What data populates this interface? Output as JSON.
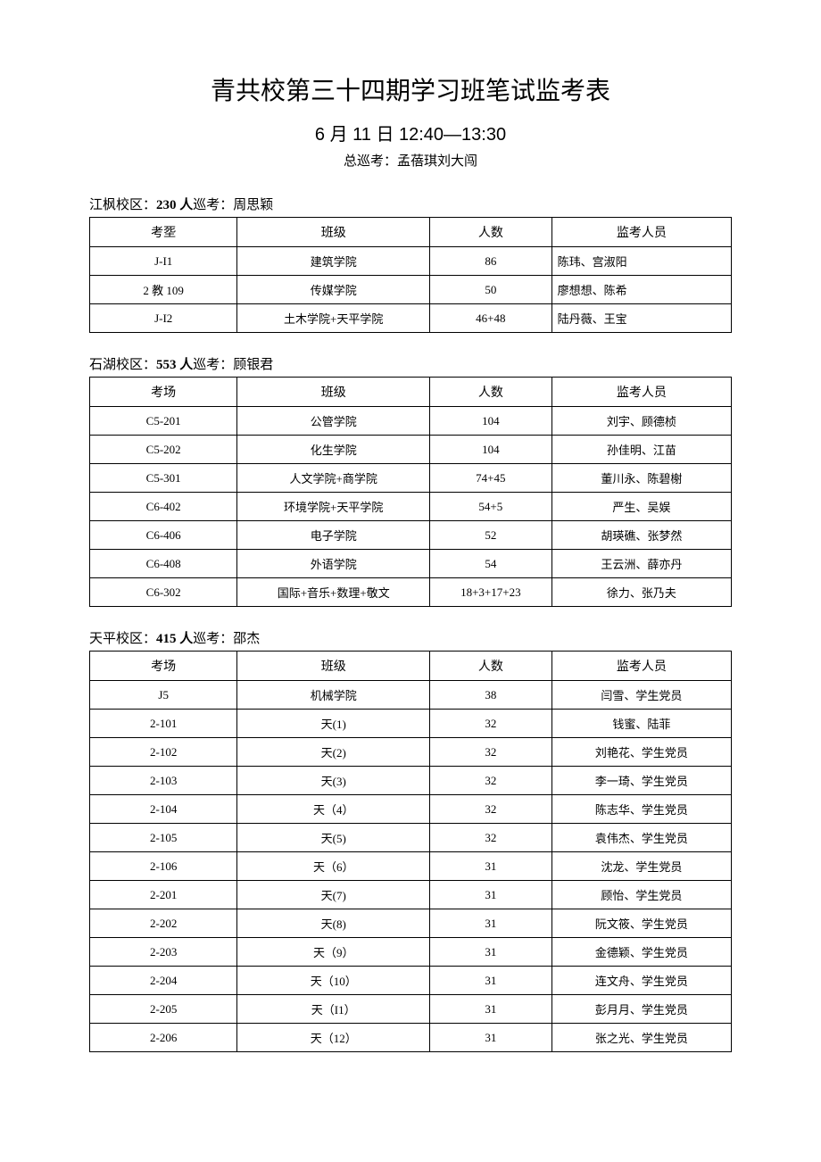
{
  "title": "青共校第三十四期学习班笔试监考表",
  "subtitle": "6 月 11 日 12:40—13:30",
  "supervisor_line": "总巡考：孟蓓琪刘大闯",
  "headers": {
    "room": "考场",
    "room_alt": "考㘸",
    "klass": "班级",
    "count": "人数",
    "staff": "监考人员"
  },
  "sections": [
    {
      "id": "jiangfeng",
      "label_prefix": "江枫校区：",
      "label_bold": "230 人",
      "label_rest": "巡考：周思颖",
      "use_alt_room_header": true,
      "staff_left_align": true,
      "rows": [
        {
          "room": "J-I1",
          "klass": "建筑学院",
          "count": "86",
          "staff": "陈玮、宫淑阳"
        },
        {
          "room": "2 教 109",
          "klass": "传媒学院",
          "count": "50",
          "staff": "廖想想、陈希"
        },
        {
          "room": "J-I2",
          "klass": "土木学院+天平学院",
          "count": "46+48",
          "staff": "陆丹薇、王宝"
        }
      ]
    },
    {
      "id": "shihu",
      "label_prefix": "石湖校区：",
      "label_bold": "553 人",
      "label_rest": "巡考：顾银君",
      "use_alt_room_header": false,
      "staff_left_align": false,
      "rows": [
        {
          "room": "C5-201",
          "klass": "公管学院",
          "count": "104",
          "staff": "刘宇、顾德桢"
        },
        {
          "room": "C5-202",
          "klass": "化生学院",
          "count": "104",
          "staff": "孙佳明、江苗"
        },
        {
          "room": "C5-301",
          "klass": "人文学院+商学院",
          "count": "74+45",
          "staff": "董川永、陈碧榭"
        },
        {
          "room": "C6-402",
          "klass": "环境学院+天平学院",
          "count": "54+5",
          "staff": "严生、吴娱"
        },
        {
          "room": "C6-406",
          "klass": "电子学院",
          "count": "52",
          "staff": "胡瑛礁、张梦然"
        },
        {
          "room": "C6-408",
          "klass": "外语学院",
          "count": "54",
          "staff": "王云洲、薛亦丹"
        },
        {
          "room": "C6-302",
          "klass": "国际+音乐+数理+敬文",
          "count": "18+3+17+23",
          "staff": "徐力、张乃夫"
        }
      ]
    },
    {
      "id": "tianping",
      "label_prefix": "天平校区：",
      "label_bold": "415 人",
      "label_rest": "巡考：邵杰",
      "use_alt_room_header": false,
      "staff_left_align": false,
      "rows": [
        {
          "room": "J5",
          "klass": "机械学院",
          "count": "38",
          "staff": "闫雪、学生党员"
        },
        {
          "room": "2-101",
          "klass": "天(1)",
          "count": "32",
          "staff": "钱蜜、陆菲"
        },
        {
          "room": "2-102",
          "klass": "天(2)",
          "count": "32",
          "staff": "刘艳花、学生党员"
        },
        {
          "room": "2-103",
          "klass": "天(3)",
          "count": "32",
          "staff": "李一琦、学生党员"
        },
        {
          "room": "2-104",
          "klass": "天（4）",
          "count": "32",
          "staff": "陈志华、学生党员"
        },
        {
          "room": "2-105",
          "klass": "天(5)",
          "count": "32",
          "staff": "袁伟杰、学生党员"
        },
        {
          "room": "2-106",
          "klass": "天（6）",
          "count": "31",
          "staff": "沈龙、学生党员"
        },
        {
          "room": "2-201",
          "klass": "天(7)",
          "count": "31",
          "staff": "顾怡、学生党员"
        },
        {
          "room": "2-202",
          "klass": "天(8)",
          "count": "31",
          "staff": "阮文筱、学生党员"
        },
        {
          "room": "2-203",
          "klass": "天（9）",
          "count": "31",
          "staff": "金德颖、学生党员"
        },
        {
          "room": "2-204",
          "klass": "天（10）",
          "count": "31",
          "staff": "连文舟、学生党员"
        },
        {
          "room": "2-205",
          "klass": "天（I1）",
          "count": "31",
          "staff": "彭月月、学生党员"
        },
        {
          "room": "2-206",
          "klass": "天（12）",
          "count": "31",
          "staff": "张之光、学生党员"
        }
      ]
    }
  ]
}
